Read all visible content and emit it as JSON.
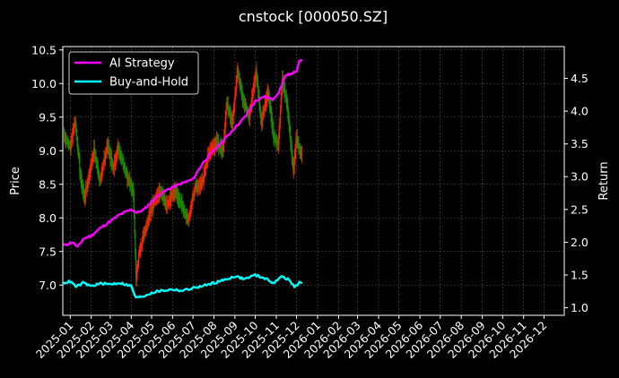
{
  "chart_data": {
    "type": "line",
    "title": "cnstock [000050.SZ]",
    "ylabel_left": "Price",
    "ylabel_right": "Return",
    "xlabel": "",
    "grid": true,
    "legend_position": "top-left",
    "x_range": [
      "2024-12-21",
      "2026-12-31"
    ],
    "ylim_left": [
      6.55,
      10.55
    ],
    "ylim_right": [
      0.885,
      4.985
    ],
    "x_ticks": [
      "2025-01",
      "2025-02",
      "2025-03",
      "2025-04",
      "2025-05",
      "2025-06",
      "2025-07",
      "2025-08",
      "2025-09",
      "2025-10",
      "2025-11",
      "2025-12",
      "2026-01",
      "2026-02",
      "2026-03",
      "2026-04",
      "2026-05",
      "2026-06",
      "2026-07",
      "2026-08",
      "2026-09",
      "2026-10",
      "2026-11",
      "2026-12"
    ],
    "y_ticks_left": [
      "7.0",
      "7.5",
      "8.0",
      "8.5",
      "9.0",
      "9.5",
      "10.0",
      "10.5"
    ],
    "y_ticks_right": [
      "1.0",
      "1.5",
      "2.0",
      "2.5",
      "3.0",
      "3.5",
      "4.0",
      "4.5"
    ],
    "colors": {
      "background": "#000000",
      "grid": "#555555",
      "up_candle": "#ff2200",
      "down_candle": "#1a8f00",
      "ai_strategy": "#ff00ff",
      "buy_and_hold": "#00ffff"
    },
    "price_series": {
      "name": "",
      "points": [
        {
          "date": "2024-12-22",
          "value": 9.25
        },
        {
          "date": "2025-01-01",
          "value": 9.05
        },
        {
          "date": "2025-01-08",
          "value": 9.45
        },
        {
          "date": "2025-01-16",
          "value": 8.6
        },
        {
          "date": "2025-01-22",
          "value": 8.3
        },
        {
          "date": "2025-02-05",
          "value": 9.0
        },
        {
          "date": "2025-02-14",
          "value": 8.55
        },
        {
          "date": "2025-02-25",
          "value": 9.1
        },
        {
          "date": "2025-03-06",
          "value": 8.7
        },
        {
          "date": "2025-03-12",
          "value": 9.05
        },
        {
          "date": "2025-03-20",
          "value": 8.8
        },
        {
          "date": "2025-03-28",
          "value": 8.55
        },
        {
          "date": "2025-04-04",
          "value": 8.4
        },
        {
          "date": "2025-04-08",
          "value": 7.1
        },
        {
          "date": "2025-04-13",
          "value": 7.5
        },
        {
          "date": "2025-04-22",
          "value": 7.85
        },
        {
          "date": "2025-05-02",
          "value": 8.2
        },
        {
          "date": "2025-05-14",
          "value": 8.4
        },
        {
          "date": "2025-05-24",
          "value": 8.2
        },
        {
          "date": "2025-06-04",
          "value": 8.4
        },
        {
          "date": "2025-06-14",
          "value": 8.2
        },
        {
          "date": "2025-06-24",
          "value": 7.95
        },
        {
          "date": "2025-07-04",
          "value": 8.45
        },
        {
          "date": "2025-07-14",
          "value": 8.5
        },
        {
          "date": "2025-07-24",
          "value": 8.95
        },
        {
          "date": "2025-08-05",
          "value": 9.15
        },
        {
          "date": "2025-08-14",
          "value": 9.0
        },
        {
          "date": "2025-08-20",
          "value": 9.7
        },
        {
          "date": "2025-08-28",
          "value": 9.4
        },
        {
          "date": "2025-09-05",
          "value": 10.2
        },
        {
          "date": "2025-09-12",
          "value": 9.8
        },
        {
          "date": "2025-09-22",
          "value": 9.5
        },
        {
          "date": "2025-10-02",
          "value": 10.2
        },
        {
          "date": "2025-10-10",
          "value": 9.4
        },
        {
          "date": "2025-10-20",
          "value": 9.9
        },
        {
          "date": "2025-10-28",
          "value": 9.2
        },
        {
          "date": "2025-11-04",
          "value": 9.1
        },
        {
          "date": "2025-11-10",
          "value": 10.1
        },
        {
          "date": "2025-11-18",
          "value": 9.6
        },
        {
          "date": "2025-11-26",
          "value": 8.7
        },
        {
          "date": "2025-12-01",
          "value": 9.2
        },
        {
          "date": "2025-12-05",
          "value": 9.0
        },
        {
          "date": "2025-12-09",
          "value": 8.95
        }
      ]
    },
    "series": [
      {
        "name": "AI Strategy",
        "axis": "right",
        "points": [
          {
            "date": "2024-12-22",
            "value": 1.95
          },
          {
            "date": "2025-01-05",
            "value": 2.0
          },
          {
            "date": "2025-01-12",
            "value": 1.92
          },
          {
            "date": "2025-01-20",
            "value": 2.05
          },
          {
            "date": "2025-02-01",
            "value": 2.1
          },
          {
            "date": "2025-02-15",
            "value": 2.22
          },
          {
            "date": "2025-03-01",
            "value": 2.32
          },
          {
            "date": "2025-03-15",
            "value": 2.42
          },
          {
            "date": "2025-04-01",
            "value": 2.5
          },
          {
            "date": "2025-04-10",
            "value": 2.45
          },
          {
            "date": "2025-04-20",
            "value": 2.5
          },
          {
            "date": "2025-05-01",
            "value": 2.62
          },
          {
            "date": "2025-05-15",
            "value": 2.75
          },
          {
            "date": "2025-06-01",
            "value": 2.84
          },
          {
            "date": "2025-06-15",
            "value": 2.9
          },
          {
            "date": "2025-07-01",
            "value": 2.96
          },
          {
            "date": "2025-07-15",
            "value": 3.2
          },
          {
            "date": "2025-08-01",
            "value": 3.4
          },
          {
            "date": "2025-08-15",
            "value": 3.55
          },
          {
            "date": "2025-09-01",
            "value": 3.75
          },
          {
            "date": "2025-09-15",
            "value": 3.9
          },
          {
            "date": "2025-10-01",
            "value": 4.15
          },
          {
            "date": "2025-10-15",
            "value": 4.22
          },
          {
            "date": "2025-10-28",
            "value": 4.18
          },
          {
            "date": "2025-11-05",
            "value": 4.3
          },
          {
            "date": "2025-11-15",
            "value": 4.55
          },
          {
            "date": "2025-11-25",
            "value": 4.57
          },
          {
            "date": "2025-12-01",
            "value": 4.62
          },
          {
            "date": "2025-12-05",
            "value": 4.78
          },
          {
            "date": "2025-12-09",
            "value": 4.79
          }
        ]
      },
      {
        "name": "Buy-and-Hold",
        "axis": "right",
        "points": [
          {
            "date": "2024-12-22",
            "value": 1.38
          },
          {
            "date": "2025-01-01",
            "value": 1.4
          },
          {
            "date": "2025-01-10",
            "value": 1.32
          },
          {
            "date": "2025-01-20",
            "value": 1.38
          },
          {
            "date": "2025-02-01",
            "value": 1.33
          },
          {
            "date": "2025-02-15",
            "value": 1.37
          },
          {
            "date": "2025-03-01",
            "value": 1.36
          },
          {
            "date": "2025-03-15",
            "value": 1.38
          },
          {
            "date": "2025-04-01",
            "value": 1.33
          },
          {
            "date": "2025-04-08",
            "value": 1.15
          },
          {
            "date": "2025-04-20",
            "value": 1.18
          },
          {
            "date": "2025-05-01",
            "value": 1.23
          },
          {
            "date": "2025-05-15",
            "value": 1.26
          },
          {
            "date": "2025-06-01",
            "value": 1.28
          },
          {
            "date": "2025-06-15",
            "value": 1.26
          },
          {
            "date": "2025-07-01",
            "value": 1.3
          },
          {
            "date": "2025-07-15",
            "value": 1.33
          },
          {
            "date": "2025-08-01",
            "value": 1.38
          },
          {
            "date": "2025-08-15",
            "value": 1.42
          },
          {
            "date": "2025-09-01",
            "value": 1.48
          },
          {
            "date": "2025-09-15",
            "value": 1.44
          },
          {
            "date": "2025-10-01",
            "value": 1.5
          },
          {
            "date": "2025-10-15",
            "value": 1.45
          },
          {
            "date": "2025-10-28",
            "value": 1.38
          },
          {
            "date": "2025-11-10",
            "value": 1.48
          },
          {
            "date": "2025-11-20",
            "value": 1.42
          },
          {
            "date": "2025-11-28",
            "value": 1.32
          },
          {
            "date": "2025-12-05",
            "value": 1.38
          },
          {
            "date": "2025-12-09",
            "value": 1.37
          }
        ]
      }
    ]
  }
}
